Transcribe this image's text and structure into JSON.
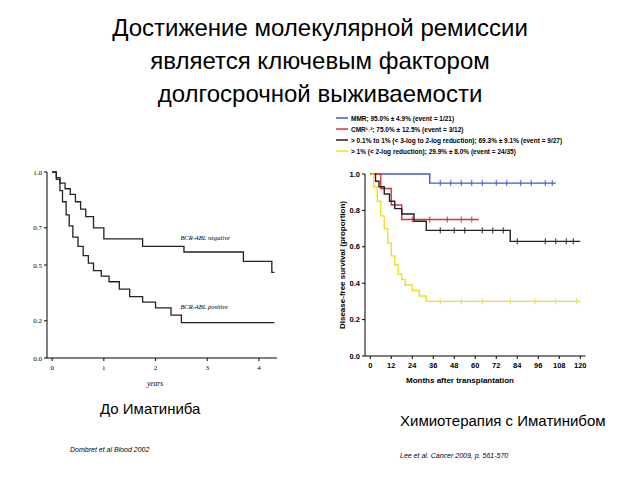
{
  "title_lines": [
    "Достижение молекулярной ремиссии",
    "является ключевым фактором",
    "долгосрочной выживаемости"
  ],
  "chart_data": [
    {
      "type": "step",
      "title": "До Иматиниба",
      "source": "Dombret et al Blood 2002",
      "x_label": "years",
      "xlim": [
        -0.1,
        4.35
      ],
      "ylim": [
        0,
        1
      ],
      "xticks": [
        0,
        1,
        2,
        3,
        4
      ],
      "yticks": [
        {
          "value": 0,
          "label": "0.0"
        },
        {
          "value": 0.2,
          "label": "0.2"
        },
        {
          "value": 0.5,
          "label": "0.5"
        },
        {
          "value": 0.7,
          "label": "0.7"
        },
        {
          "value": 1,
          "label": "1.0"
        }
      ],
      "series": [
        {
          "name": "BCR-ABL negative",
          "color": "#222222",
          "x": [
            0,
            0.08,
            0.15,
            0.25,
            0.35,
            0.45,
            0.55,
            0.65,
            0.8,
            1.0,
            1.75,
            2.55,
            3.7,
            4.25,
            4.3
          ],
          "values": [
            1,
            0.97,
            0.94,
            0.91,
            0.88,
            0.84,
            0.8,
            0.76,
            0.7,
            0.64,
            0.6,
            0.57,
            0.52,
            0.46,
            0.46
          ]
        },
        {
          "name": "BCR-ABL positive",
          "color": "#222222",
          "x": [
            0,
            0.08,
            0.15,
            0.2,
            0.27,
            0.33,
            0.4,
            0.5,
            0.6,
            0.7,
            0.8,
            0.95,
            1.1,
            1.3,
            1.5,
            1.75,
            2.0,
            2.3,
            2.5,
            4.3
          ],
          "values": [
            1,
            0.96,
            0.9,
            0.84,
            0.77,
            0.71,
            0.65,
            0.6,
            0.55,
            0.51,
            0.47,
            0.44,
            0.41,
            0.37,
            0.33,
            0.3,
            0.27,
            0.23,
            0.19,
            0.19
          ]
        }
      ]
    },
    {
      "type": "step",
      "title": "Химиотерапия с Иматинибом",
      "source": "Lee et al. Cancer 2009, p. 561-570",
      "x_label": "Months after transplantation",
      "y_label": "Disease-free survival (proportion)",
      "xlim": [
        -3,
        123
      ],
      "ylim": [
        0,
        1
      ],
      "xticks": [
        0,
        12,
        24,
        36,
        48,
        60,
        72,
        84,
        96,
        108,
        120
      ],
      "yticks": [
        {
          "value": 0,
          "label": "0.0"
        },
        0.2,
        0.4,
        0.6,
        0.8,
        {
          "value": 1,
          "label": "1.0"
        }
      ],
      "legend": "top-left",
      "series": [
        {
          "name": "MMR; 95.0% ± 4.9% (event = 1/21)",
          "color": "#3a5fcd",
          "x": [
            0,
            34,
            106
          ],
          "values": [
            1,
            0.95,
            0.95
          ],
          "censored": [
            40,
            46,
            52,
            58,
            64,
            72,
            78,
            86,
            92,
            100,
            104
          ]
        },
        {
          "name": "CMR¹˒²; 75.0% ± 12.5% (event = 3/12)",
          "color": "#e03030",
          "x": [
            0,
            6,
            12,
            18,
            62
          ],
          "values": [
            1,
            0.92,
            0.83,
            0.75,
            0.75
          ],
          "censored": [
            24,
            34,
            44,
            52,
            58
          ]
        },
        {
          "name": "> 0.1% to 1% (< 3-log to 2-log reduction); 69.3% ± 9.1% (event = 9/27)",
          "color": "#222222",
          "x": [
            0,
            3,
            5,
            8,
            11,
            14,
            18,
            25,
            32,
            80,
            120
          ],
          "values": [
            1,
            0.96,
            0.93,
            0.89,
            0.85,
            0.81,
            0.78,
            0.74,
            0.69,
            0.63,
            0.63
          ],
          "censored": [
            40,
            48,
            54,
            64,
            70,
            76,
            84,
            100,
            106,
            112,
            116
          ]
        },
        {
          "name": "> 1% (< 2-log reduction); 29.9% ± 8.0% (event = 24/35)",
          "color": "#f0e020",
          "x": [
            0,
            2,
            4,
            6,
            8,
            10,
            12,
            14,
            16,
            18,
            20,
            24,
            28,
            32,
            120
          ],
          "values": [
            1,
            0.93,
            0.85,
            0.77,
            0.7,
            0.62,
            0.55,
            0.5,
            0.45,
            0.42,
            0.39,
            0.36,
            0.33,
            0.3,
            0.3
          ],
          "censored": [
            40,
            52,
            64,
            80,
            94,
            106,
            118
          ]
        }
      ]
    }
  ]
}
